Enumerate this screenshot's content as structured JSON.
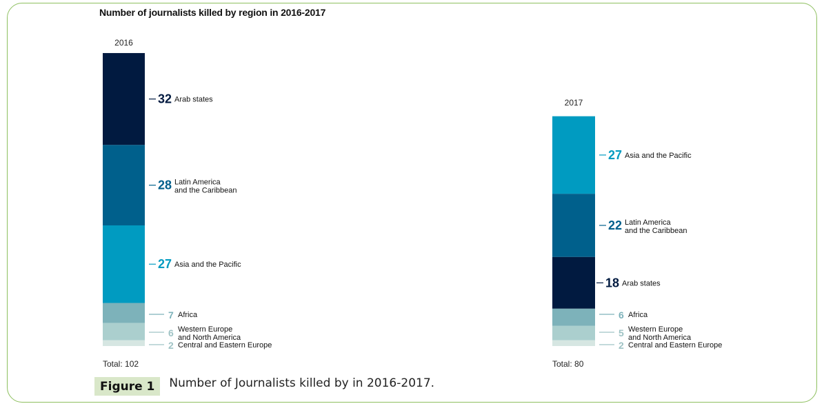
{
  "chart_data": [
    {
      "type": "bar",
      "stacked": true,
      "title": "Number of journalists killed by region in 2016-2017",
      "category": "2016",
      "total_label": "Total: 102",
      "total": 102,
      "segments": [
        {
          "name": "Arab states",
          "value": 32,
          "color": "#011a40"
        },
        {
          "name": "Latin America\nand the Caribbean",
          "value": 28,
          "color": "#00608c"
        },
        {
          "name": "Asia and the Pacific",
          "value": 27,
          "color": "#009bc1"
        },
        {
          "name": "Africa",
          "value": 7,
          "color": "#7db2ba"
        },
        {
          "name": "Western Europe\nand North America",
          "value": 6,
          "color": "#abcfce"
        },
        {
          "name": "Central and Eastern Europe",
          "value": 2,
          "color": "#d6e6e2"
        }
      ]
    },
    {
      "type": "bar",
      "stacked": true,
      "category": "2017",
      "total_label": "Total: 80",
      "total": 80,
      "segments": [
        {
          "name": "Asia and the Pacific",
          "value": 27,
          "color": "#009bc1"
        },
        {
          "name": "Latin America\nand the Caribbean",
          "value": 22,
          "color": "#00608c"
        },
        {
          "name": "Arab states",
          "value": 18,
          "color": "#011a40"
        },
        {
          "name": "Africa",
          "value": 6,
          "color": "#7db2ba"
        },
        {
          "name": "Western Europe\nand North America",
          "value": 5,
          "color": "#abcfce"
        },
        {
          "name": "Central and Eastern Europe",
          "value": 2,
          "color": "#d6e6e2"
        }
      ]
    }
  ],
  "caption": {
    "label": "Figure 1",
    "text": "Number of Journalists killed by in 2016-2017."
  }
}
